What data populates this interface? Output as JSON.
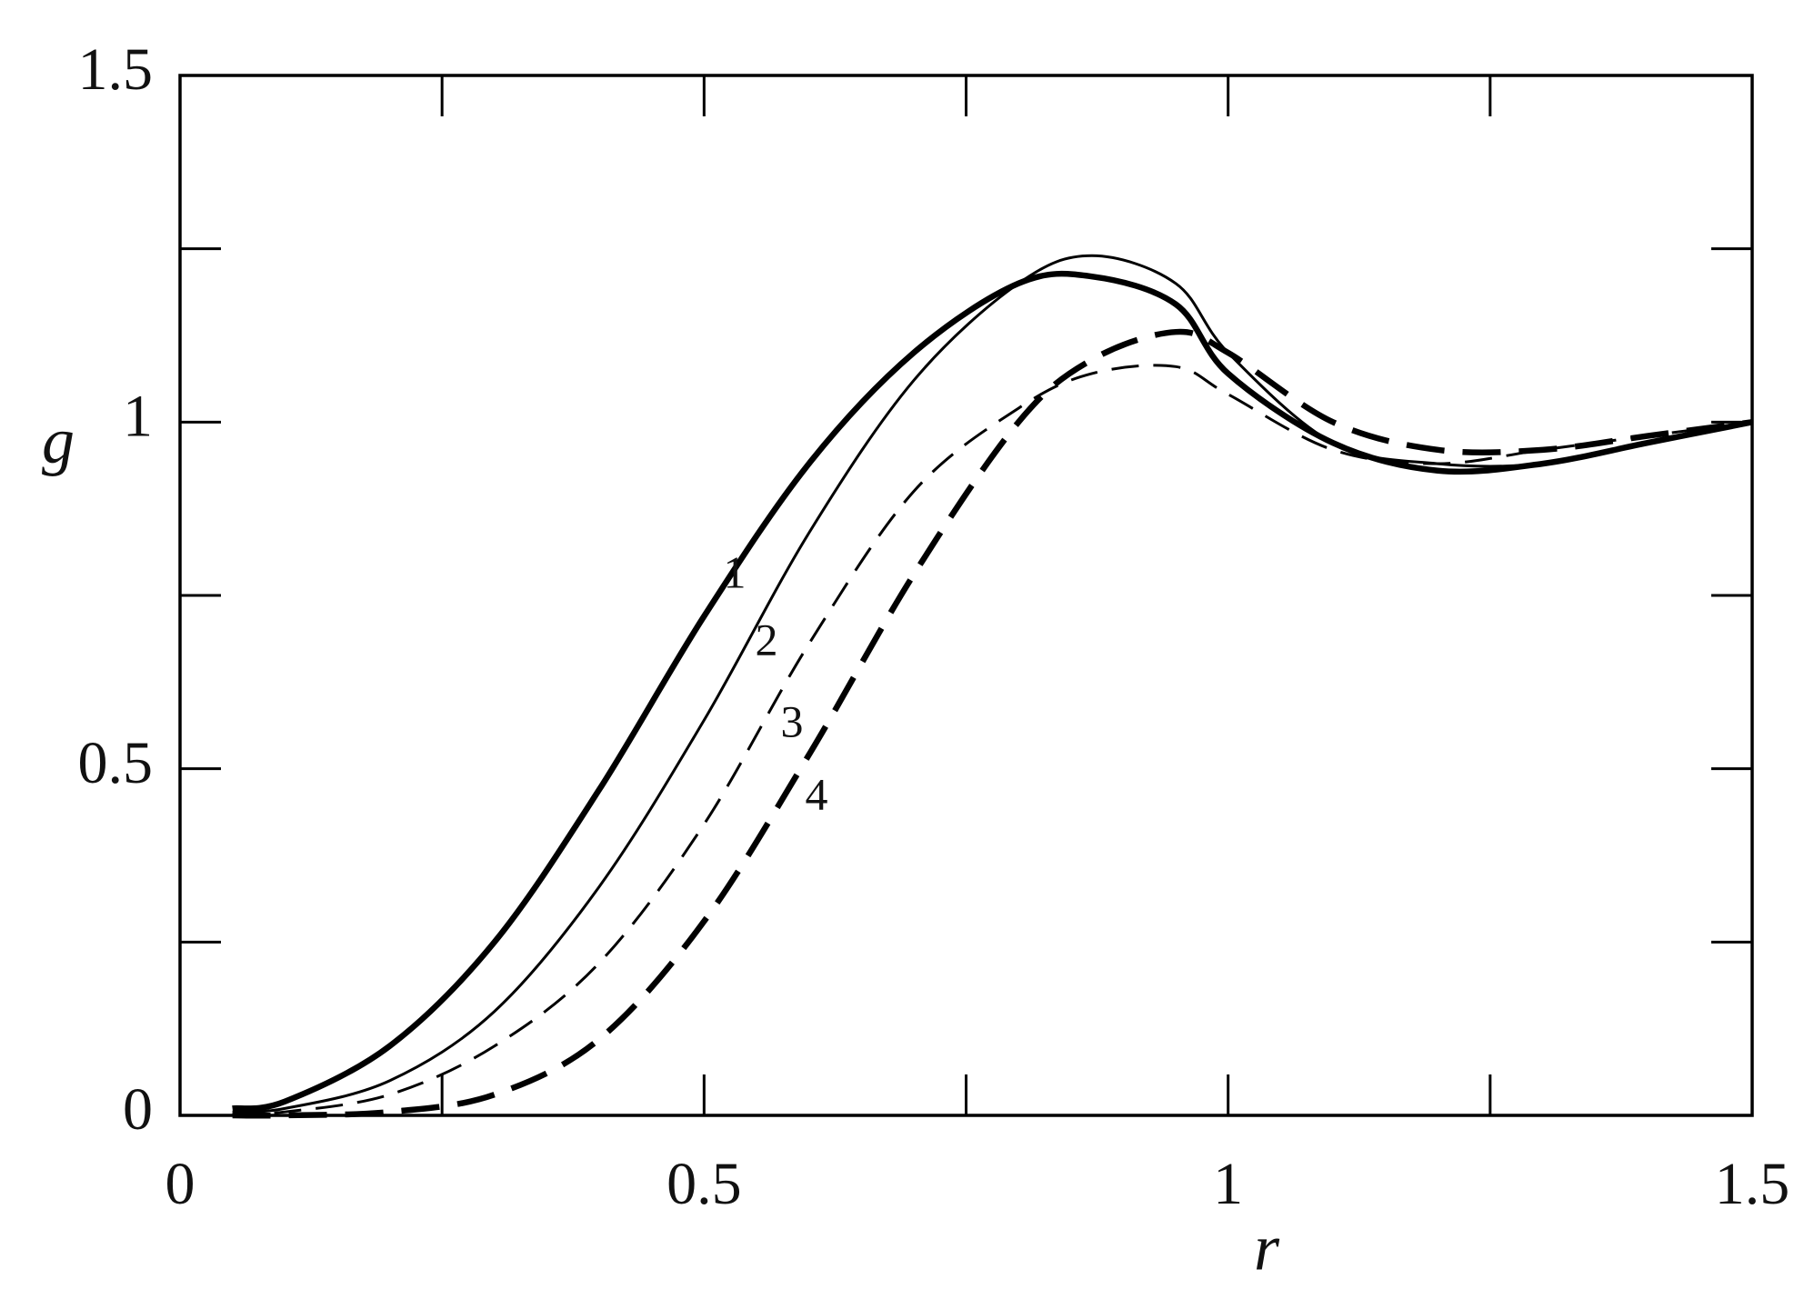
{
  "chart_data": {
    "type": "line",
    "xlabel": "r",
    "ylabel": "g",
    "xlim": [
      0,
      1.5
    ],
    "ylim": [
      0,
      1.5
    ],
    "xticks": [
      0,
      0.5,
      1,
      1.5
    ],
    "yticks": [
      0,
      0.5,
      1,
      1.5
    ],
    "xminor_ticks": [
      0.25,
      0.75,
      1.25
    ],
    "yminor_ticks": [
      0.25,
      0.75,
      1.25
    ],
    "x": [
      0.05,
      0.1,
      0.2,
      0.3,
      0.4,
      0.5,
      0.6,
      0.7,
      0.8,
      0.87,
      0.95,
      1.0,
      1.1,
      1.2,
      1.3,
      1.4,
      1.5
    ],
    "series": [
      {
        "name": "1",
        "color": "#000000",
        "width": "thick",
        "dashed": false,
        "values": [
          0.01,
          0.02,
          0.1,
          0.25,
          0.47,
          0.72,
          0.94,
          1.1,
          1.2,
          1.21,
          1.17,
          1.07,
          0.97,
          0.93,
          0.94,
          0.97,
          1.0
        ]
      },
      {
        "name": "2",
        "color": "#000000",
        "width": "thin",
        "dashed": false,
        "values": [
          0.005,
          0.01,
          0.05,
          0.15,
          0.33,
          0.57,
          0.84,
          1.06,
          1.2,
          1.24,
          1.2,
          1.1,
          0.97,
          0.94,
          0.94,
          0.97,
          1.0
        ]
      },
      {
        "name": "3",
        "color": "#000000",
        "width": "thin",
        "dashed": true,
        "values": [
          0.002,
          0.005,
          0.03,
          0.1,
          0.22,
          0.42,
          0.68,
          0.9,
          1.02,
          1.07,
          1.08,
          1.04,
          0.96,
          0.94,
          0.96,
          0.98,
          1.0
        ]
      },
      {
        "name": "4",
        "color": "#000000",
        "width": "thick",
        "dashed": true,
        "values": [
          0.0,
          0.0,
          0.005,
          0.03,
          0.11,
          0.28,
          0.52,
          0.78,
          1.0,
          1.09,
          1.13,
          1.1,
          1.0,
          0.96,
          0.96,
          0.98,
          1.0
        ]
      }
    ]
  }
}
